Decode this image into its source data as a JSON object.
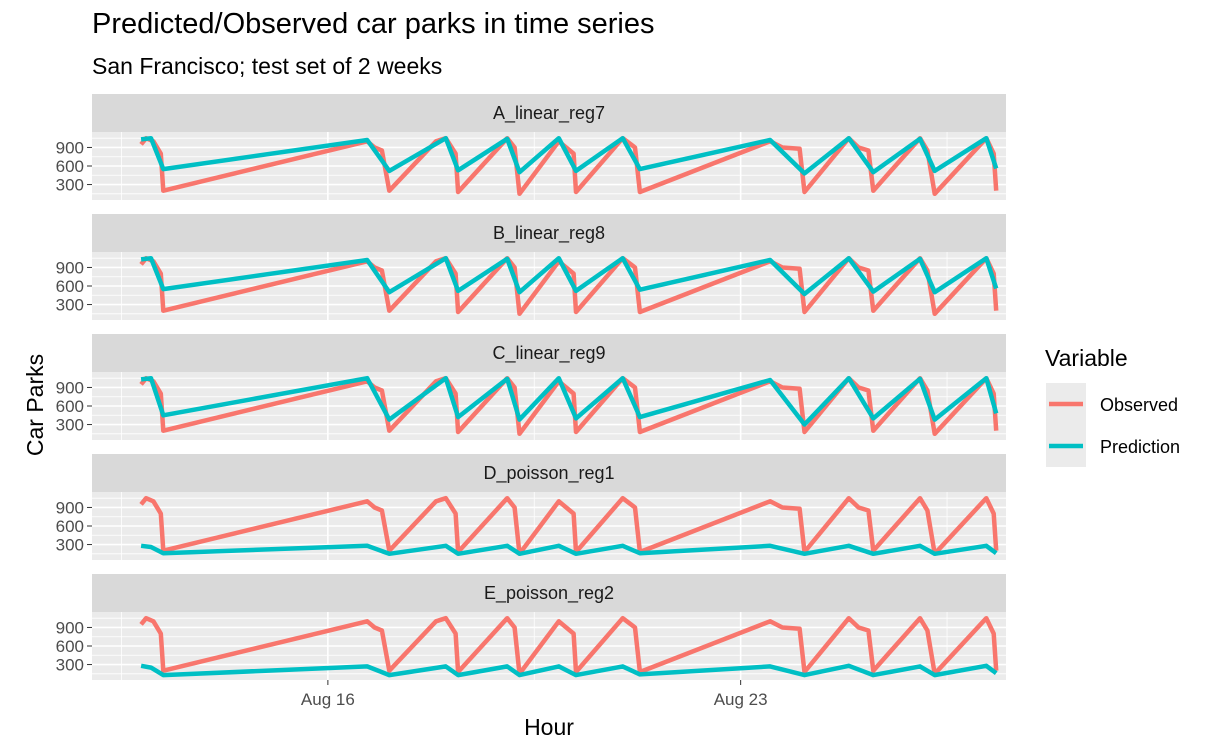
{
  "chart_data": {
    "type": "line",
    "title": "Predicted/Observed car parks in time series",
    "subtitle": "San Francisco; test set of 2 weeks",
    "xlabel": "Hour",
    "ylabel": "Car Parks",
    "x_ticks": [
      "Aug 16",
      "Aug 23"
    ],
    "y_ticks": [
      300,
      600,
      900
    ],
    "legend": {
      "title": "Variable",
      "position": "right",
      "entries": [
        {
          "name": "Observed",
          "color": "#F8766D"
        },
        {
          "name": "Prediction",
          "color": "#00BFC4"
        }
      ]
    },
    "grid": true,
    "facets": [
      {
        "label": "A_linear_reg7"
      },
      {
        "label": "B_linear_reg8"
      },
      {
        "label": "C_linear_reg9"
      },
      {
        "label": "D_poisson_reg1"
      },
      {
        "label": "E_poisson_reg2"
      }
    ],
    "series": [
      {
        "name": "Observed",
        "note": "Same observed series in every facet",
        "points": [
          [
            "2021-08-12 20:00",
            950
          ],
          [
            "2021-08-12 22:00",
            1050
          ],
          [
            "2021-08-13 01:00",
            1000
          ],
          [
            "2021-08-13 04:00",
            800
          ],
          [
            "2021-08-13 05:00",
            200
          ],
          [
            "2021-08-16 16:00",
            1000
          ],
          [
            "2021-08-16 19:00",
            900
          ],
          [
            "2021-08-16 22:00",
            850
          ],
          [
            "2021-08-17 01:00",
            200
          ],
          [
            "2021-08-17 20:00",
            1000
          ],
          [
            "2021-08-18 00:00",
            1050
          ],
          [
            "2021-08-18 04:00",
            800
          ],
          [
            "2021-08-18 05:00",
            180
          ],
          [
            "2021-08-19 01:00",
            1050
          ],
          [
            "2021-08-19 04:00",
            900
          ],
          [
            "2021-08-19 06:00",
            150
          ],
          [
            "2021-08-19 22:00",
            1000
          ],
          [
            "2021-08-20 04:00",
            800
          ],
          [
            "2021-08-20 05:00",
            180
          ],
          [
            "2021-08-21 00:00",
            1050
          ],
          [
            "2021-08-21 05:00",
            900
          ],
          [
            "2021-08-21 07:00",
            180
          ],
          [
            "2021-08-23 12:00",
            1000
          ],
          [
            "2021-08-23 17:00",
            900
          ],
          [
            "2021-08-24 00:00",
            880
          ],
          [
            "2021-08-24 02:00",
            180
          ],
          [
            "2021-08-24 20:00",
            1050
          ],
          [
            "2021-08-25 00:00",
            900
          ],
          [
            "2021-08-25 04:00",
            850
          ],
          [
            "2021-08-25 06:00",
            200
          ],
          [
            "2021-08-26 01:00",
            1050
          ],
          [
            "2021-08-26 04:00",
            850
          ],
          [
            "2021-08-26 07:00",
            150
          ],
          [
            "2021-08-27 04:00",
            1050
          ],
          [
            "2021-08-27 07:00",
            800
          ],
          [
            "2021-08-27 08:00",
            200
          ]
        ]
      },
      {
        "name": "Prediction",
        "facet_values": [
          {
            "facet": "A_linear_reg7",
            "points": [
              [
                "2021-08-12 20:00",
                1030
              ],
              [
                "2021-08-13 00:00",
                1050
              ],
              [
                "2021-08-13 05:00",
                550
              ],
              [
                "2021-08-16 16:00",
                1020
              ],
              [
                "2021-08-17 01:00",
                520
              ],
              [
                "2021-08-18 00:00",
                1050
              ],
              [
                "2021-08-18 05:00",
                530
              ],
              [
                "2021-08-19 01:00",
                1040
              ],
              [
                "2021-08-19 06:00",
                500
              ],
              [
                "2021-08-19 22:00",
                1050
              ],
              [
                "2021-08-20 05:00",
                520
              ],
              [
                "2021-08-21 00:00",
                1050
              ],
              [
                "2021-08-21 07:00",
                550
              ],
              [
                "2021-08-23 12:00",
                1020
              ],
              [
                "2021-08-24 02:00",
                480
              ],
              [
                "2021-08-24 20:00",
                1050
              ],
              [
                "2021-08-25 06:00",
                500
              ],
              [
                "2021-08-26 01:00",
                1040
              ],
              [
                "2021-08-26 07:00",
                520
              ],
              [
                "2021-08-27 04:00",
                1050
              ],
              [
                "2021-08-27 08:00",
                560
              ]
            ]
          },
          {
            "facet": "B_linear_reg8",
            "points": [
              [
                "2021-08-12 20:00",
                1030
              ],
              [
                "2021-08-13 00:00",
                1050
              ],
              [
                "2021-08-13 05:00",
                550
              ],
              [
                "2021-08-16 16:00",
                1020
              ],
              [
                "2021-08-17 01:00",
                500
              ],
              [
                "2021-08-18 00:00",
                1050
              ],
              [
                "2021-08-18 05:00",
                520
              ],
              [
                "2021-08-19 01:00",
                1040
              ],
              [
                "2021-08-19 06:00",
                500
              ],
              [
                "2021-08-19 22:00",
                1050
              ],
              [
                "2021-08-20 05:00",
                520
              ],
              [
                "2021-08-21 00:00",
                1050
              ],
              [
                "2021-08-21 07:00",
                540
              ],
              [
                "2021-08-23 12:00",
                1020
              ],
              [
                "2021-08-24 02:00",
                470
              ],
              [
                "2021-08-24 20:00",
                1050
              ],
              [
                "2021-08-25 06:00",
                510
              ],
              [
                "2021-08-26 01:00",
                1040
              ],
              [
                "2021-08-26 07:00",
                500
              ],
              [
                "2021-08-27 04:00",
                1050
              ],
              [
                "2021-08-27 08:00",
                560
              ]
            ]
          },
          {
            "facet": "C_linear_reg9",
            "points": [
              [
                "2021-08-12 20:00",
                1030
              ],
              [
                "2021-08-13 00:00",
                1050
              ],
              [
                "2021-08-13 05:00",
                450
              ],
              [
                "2021-08-16 16:00",
                1050
              ],
              [
                "2021-08-17 01:00",
                380
              ],
              [
                "2021-08-18 00:00",
                1050
              ],
              [
                "2021-08-18 05:00",
                420
              ],
              [
                "2021-08-19 01:00",
                1040
              ],
              [
                "2021-08-19 06:00",
                380
              ],
              [
                "2021-08-19 22:00",
                1050
              ],
              [
                "2021-08-20 05:00",
                400
              ],
              [
                "2021-08-21 00:00",
                1050
              ],
              [
                "2021-08-21 07:00",
                420
              ],
              [
                "2021-08-23 12:00",
                1020
              ],
              [
                "2021-08-24 02:00",
                300
              ],
              [
                "2021-08-24 20:00",
                1050
              ],
              [
                "2021-08-25 06:00",
                400
              ],
              [
                "2021-08-26 01:00",
                1040
              ],
              [
                "2021-08-26 07:00",
                380
              ],
              [
                "2021-08-27 04:00",
                1050
              ],
              [
                "2021-08-27 08:00",
                480
              ]
            ]
          },
          {
            "facet": "D_poisson_reg1",
            "points": [
              [
                "2021-08-12 20:00",
                280
              ],
              [
                "2021-08-13 00:00",
                260
              ],
              [
                "2021-08-13 05:00",
                160
              ],
              [
                "2021-08-16 16:00",
                280
              ],
              [
                "2021-08-17 01:00",
                150
              ],
              [
                "2021-08-18 00:00",
                280
              ],
              [
                "2021-08-18 05:00",
                150
              ],
              [
                "2021-08-19 01:00",
                280
              ],
              [
                "2021-08-19 06:00",
                150
              ],
              [
                "2021-08-19 22:00",
                280
              ],
              [
                "2021-08-20 05:00",
                150
              ],
              [
                "2021-08-21 00:00",
                280
              ],
              [
                "2021-08-21 07:00",
                160
              ],
              [
                "2021-08-23 12:00",
                280
              ],
              [
                "2021-08-24 02:00",
                150
              ],
              [
                "2021-08-24 20:00",
                280
              ],
              [
                "2021-08-25 06:00",
                150
              ],
              [
                "2021-08-26 01:00",
                280
              ],
              [
                "2021-08-26 07:00",
                150
              ],
              [
                "2021-08-27 04:00",
                280
              ],
              [
                "2021-08-27 08:00",
                160
              ]
            ]
          },
          {
            "facet": "E_poisson_reg2",
            "points": [
              [
                "2021-08-12 20:00",
                280
              ],
              [
                "2021-08-13 00:00",
                250
              ],
              [
                "2021-08-13 05:00",
                130
              ],
              [
                "2021-08-16 16:00",
                270
              ],
              [
                "2021-08-17 01:00",
                130
              ],
              [
                "2021-08-18 00:00",
                270
              ],
              [
                "2021-08-18 05:00",
                130
              ],
              [
                "2021-08-19 01:00",
                270
              ],
              [
                "2021-08-19 06:00",
                130
              ],
              [
                "2021-08-19 22:00",
                270
              ],
              [
                "2021-08-20 05:00",
                130
              ],
              [
                "2021-08-21 00:00",
                270
              ],
              [
                "2021-08-21 07:00",
                140
              ],
              [
                "2021-08-23 12:00",
                270
              ],
              [
                "2021-08-24 02:00",
                130
              ],
              [
                "2021-08-24 20:00",
                280
              ],
              [
                "2021-08-25 06:00",
                130
              ],
              [
                "2021-08-26 01:00",
                270
              ],
              [
                "2021-08-26 07:00",
                130
              ],
              [
                "2021-08-27 04:00",
                280
              ],
              [
                "2021-08-27 08:00",
                160
              ]
            ]
          }
        ]
      }
    ],
    "x_range": [
      "2021-08-12 00:00",
      "2021-08-27 12:00"
    ],
    "ylim": [
      50,
      1150
    ]
  }
}
